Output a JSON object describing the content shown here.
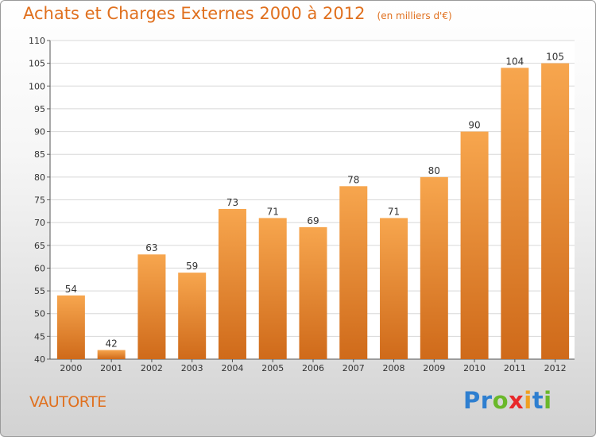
{
  "header": {
    "title": "Achats et Charges Externes 2000 à 2012",
    "subtitle": "(en milliers d'€)"
  },
  "footer": {
    "commune": "VAUTORTE",
    "logo_text": "Proxiti",
    "logo_colors": [
      "#2e7fd0",
      "#2e7fd0",
      "#6ab82a",
      "#e8282a",
      "#f0a020",
      "#2e7fd0",
      "#6ab82a"
    ]
  },
  "chart_data": {
    "type": "bar",
    "categories": [
      "2000",
      "2001",
      "2002",
      "2003",
      "2004",
      "2005",
      "2006",
      "2007",
      "2008",
      "2009",
      "2010",
      "2011",
      "2012"
    ],
    "values": [
      54,
      42,
      63,
      59,
      73,
      71,
      69,
      78,
      71,
      80,
      90,
      104,
      105
    ],
    "title": "Achats et Charges Externes 2000 à 2012",
    "subtitle": "(en milliers d'€)",
    "ylim": [
      40,
      110
    ],
    "yticks": [
      40,
      45,
      50,
      55,
      60,
      65,
      70,
      75,
      80,
      85,
      90,
      95,
      100,
      105,
      110
    ],
    "grid": true,
    "bar_color_top": "#f7a64e",
    "bar_color_bottom": "#cf6a1a"
  }
}
